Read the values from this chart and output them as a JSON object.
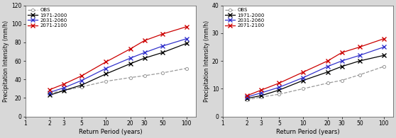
{
  "return_periods": [
    2,
    3,
    5,
    10,
    20,
    30,
    50,
    100
  ],
  "panel_a": {
    "ylabel": "Precipitation Intensity (mm/h)",
    "xlabel": "Return Period (years)",
    "ylim": [
      0,
      120
    ],
    "yticks": [
      0,
      20,
      40,
      60,
      80,
      100,
      120
    ],
    "series": {
      "OBS": [
        25,
        28,
        32,
        38,
        42,
        44,
        47,
        52
      ],
      "1971-2000": [
        23,
        28,
        34,
        46,
        57,
        63,
        69,
        79
      ],
      "2031-2060": [
        26,
        31,
        39,
        52,
        63,
        69,
        76,
        84
      ],
      "2071-2100": [
        29,
        35,
        44,
        59,
        73,
        82,
        89,
        97
      ]
    }
  },
  "panel_b": {
    "ylabel": "Precipitation Intensity (mm/h)",
    "xlabel": "Return Period (years)",
    "ylim": [
      0,
      40
    ],
    "yticks": [
      0,
      10,
      20,
      30,
      40
    ],
    "series": {
      "OBS": [
        6,
        7,
        8,
        10,
        12,
        13,
        15,
        18
      ],
      "1971-2000": [
        6.5,
        7.5,
        9.5,
        13,
        16,
        18,
        20,
        22
      ],
      "2031-2060": [
        7,
        8.5,
        10.5,
        14,
        18,
        20,
        22,
        25
      ],
      "2071-2100": [
        7.5,
        9.5,
        12,
        16,
        20,
        23,
        25,
        28
      ]
    }
  },
  "colors": {
    "OBS": "#999999",
    "1971-2000": "#000000",
    "2031-2060": "#3333cc",
    "2071-2100": "#cc0000"
  },
  "linestyles": {
    "OBS": "dashed",
    "1971-2000": "solid",
    "2031-2060": "solid",
    "2071-2100": "solid"
  },
  "markers": {
    "OBS": "o",
    "1971-2000": "x",
    "2031-2060": "x",
    "2071-2100": "x"
  },
  "xticks": [
    1,
    2,
    3,
    5,
    10,
    20,
    30,
    50,
    100
  ],
  "xticklabels": [
    "1",
    "2",
    "3",
    "5",
    "10",
    "20",
    "30",
    "50",
    "100"
  ],
  "bg_color": "#d8d8d8",
  "plot_bg": "#ffffff"
}
